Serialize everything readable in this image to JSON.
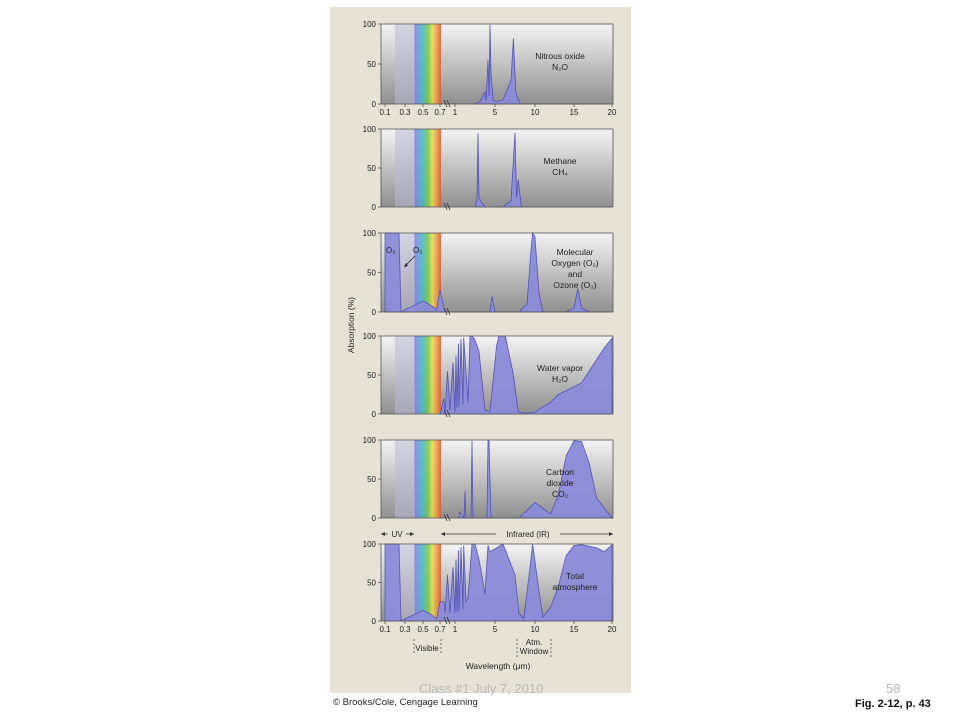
{
  "footer": {
    "class_label": "Class #1 July 7, 2010",
    "page_number": "58"
  },
  "figure": {
    "reference": "Fig. 2-12, p. 43",
    "copyright": "© Brooks/Cole, Cengage Learning"
  },
  "colors": {
    "absorption_fill": "#8c8cda",
    "absorption_stroke": "#4f4fb5",
    "panel_frame": "#e6e2d6"
  },
  "chart_data": [
    {
      "type": "area",
      "label_lines": [
        "Nitrous oxide",
        "N₂O"
      ],
      "ylim": [
        0,
        100
      ],
      "x_ticks": [
        "0.1",
        "0.3",
        "0.5",
        "0.7",
        "1",
        "5",
        "10",
        "15",
        "20"
      ],
      "y_ticks": [
        "0",
        "50",
        "100"
      ],
      "x": [
        3,
        3.5,
        4,
        4.1,
        4.3,
        4.4,
        4.5,
        4.6,
        4.8,
        5.2,
        6,
        7,
        7.3,
        7.6,
        7.8,
        8.2,
        20
      ],
      "y": [
        0,
        3,
        15,
        4,
        55,
        10,
        99,
        40,
        5,
        3,
        5,
        30,
        82,
        15,
        8,
        0,
        0
      ]
    },
    {
      "type": "area",
      "label_lines": [
        "Methane",
        "CH₄"
      ],
      "ylim": [
        0,
        100
      ],
      "y_ticks": [
        "0",
        "50",
        "100"
      ],
      "x": [
        3,
        3.2,
        3.3,
        3.4,
        3.7,
        4,
        6,
        7,
        7.5,
        7.7,
        7.9,
        8.3,
        20
      ],
      "y": [
        0,
        10,
        95,
        12,
        5,
        0,
        0,
        8,
        95,
        12,
        35,
        0,
        0
      ]
    },
    {
      "type": "area",
      "label_lines": [
        "Molecular",
        "Oxygen (O₂)",
        "and",
        "Ozone (O₃)"
      ],
      "annotations": [
        "O₂",
        "O₃"
      ],
      "ylim": [
        0,
        100
      ],
      "y_ticks": [
        "0",
        "50",
        "100"
      ],
      "x": [
        0.1,
        0.24,
        0.26,
        0.3,
        0.4,
        0.5,
        0.6,
        0.66,
        0.7,
        0.8,
        0.9,
        1,
        3,
        4.5,
        4.7,
        5,
        8,
        9,
        9.5,
        9.7,
        10,
        10.5,
        11,
        14,
        15,
        15.5,
        16,
        17,
        20
      ],
      "y": [
        100,
        100,
        0,
        3,
        8,
        14,
        8,
        3,
        28,
        0,
        0,
        0,
        0,
        0,
        20,
        0,
        0,
        10,
        78,
        100,
        95,
        25,
        0,
        0,
        5,
        30,
        5,
        0,
        0
      ]
    },
    {
      "type": "area",
      "label_lines": [
        "Water vapor",
        "H₂O"
      ],
      "ylim": [
        0,
        100
      ],
      "y_ticks": [
        "0",
        "50",
        "100"
      ],
      "x": [
        0.7,
        0.78,
        0.8,
        0.85,
        0.9,
        0.96,
        1,
        1.1,
        1.2,
        1.35,
        1.4,
        1.6,
        1.8,
        1.87,
        2.3,
        2.5,
        2.7,
        3,
        3.4,
        4,
        4.5,
        5.2,
        5.5,
        6.3,
        7.3,
        7.9,
        8.6,
        10,
        10.8,
        12,
        13,
        15,
        16,
        17,
        18,
        19,
        20
      ],
      "y": [
        0,
        20,
        0,
        55,
        5,
        66,
        2,
        75,
        8,
        90,
        10,
        96,
        12,
        98,
        15,
        100,
        100,
        95,
        80,
        5,
        3,
        88,
        100,
        100,
        50,
        3,
        1,
        2,
        8,
        15,
        25,
        35,
        40,
        55,
        70,
        85,
        97
      ]
    },
    {
      "type": "area",
      "label_lines": [
        "Carbon",
        "dioxide",
        "CO₂"
      ],
      "ylim": [
        0,
        100
      ],
      "y_ticks": [
        "0",
        "50",
        "100"
      ],
      "x": [
        1,
        1.4,
        1.45,
        1.9,
        2,
        2.1,
        2.6,
        2.7,
        2.8,
        3.5,
        4.2,
        4.3,
        4.4,
        4.6,
        5.5,
        8,
        9,
        10,
        12,
        13,
        14,
        15,
        16,
        17,
        18,
        20
      ],
      "y": [
        0,
        0,
        8,
        0,
        35,
        0,
        0,
        99,
        0,
        0,
        0,
        99,
        99,
        0,
        0,
        0,
        10,
        20,
        5,
        30,
        80,
        99,
        98,
        70,
        25,
        0
      ],
      "band_arrows": [
        "UV",
        "Infrared (IR)"
      ]
    },
    {
      "type": "area",
      "label_lines": [
        "Total",
        "atmosphere"
      ],
      "ylim": [
        0,
        100
      ],
      "x_ticks": [
        "0.1",
        "0.3",
        "0.5",
        "0.7",
        "1",
        "5",
        "10",
        "15",
        "20"
      ],
      "y_ticks": [
        "0",
        "50",
        "100"
      ],
      "x": [
        0.1,
        0.24,
        0.26,
        0.3,
        0.4,
        0.5,
        0.6,
        0.66,
        0.7,
        0.78,
        0.8,
        0.85,
        0.9,
        0.96,
        1,
        1.1,
        1.2,
        1.35,
        1.4,
        1.6,
        1.8,
        1.87,
        2.1,
        2.3,
        2.7,
        3,
        3.4,
        4,
        4.3,
        4.5,
        5.2,
        6,
        7.5,
        8,
        8.6,
        9.5,
        9.7,
        10.5,
        11,
        12,
        13,
        14,
        15,
        16,
        17,
        18,
        19,
        20
      ],
      "y": [
        100,
        100,
        0,
        3,
        8,
        14,
        8,
        3,
        25,
        25,
        10,
        60,
        10,
        70,
        10,
        80,
        12,
        92,
        12,
        96,
        15,
        98,
        25,
        30,
        100,
        100,
        80,
        35,
        98,
        90,
        95,
        100,
        60,
        10,
        3,
        80,
        100,
        40,
        5,
        18,
        45,
        85,
        98,
        99,
        97,
        95,
        90,
        99
      ],
      "xlabel": "Wavelength (μm)",
      "band_labels": [
        "Visible",
        "Atm.",
        "Window"
      ]
    }
  ],
  "ylabel": "Absorption (%)"
}
